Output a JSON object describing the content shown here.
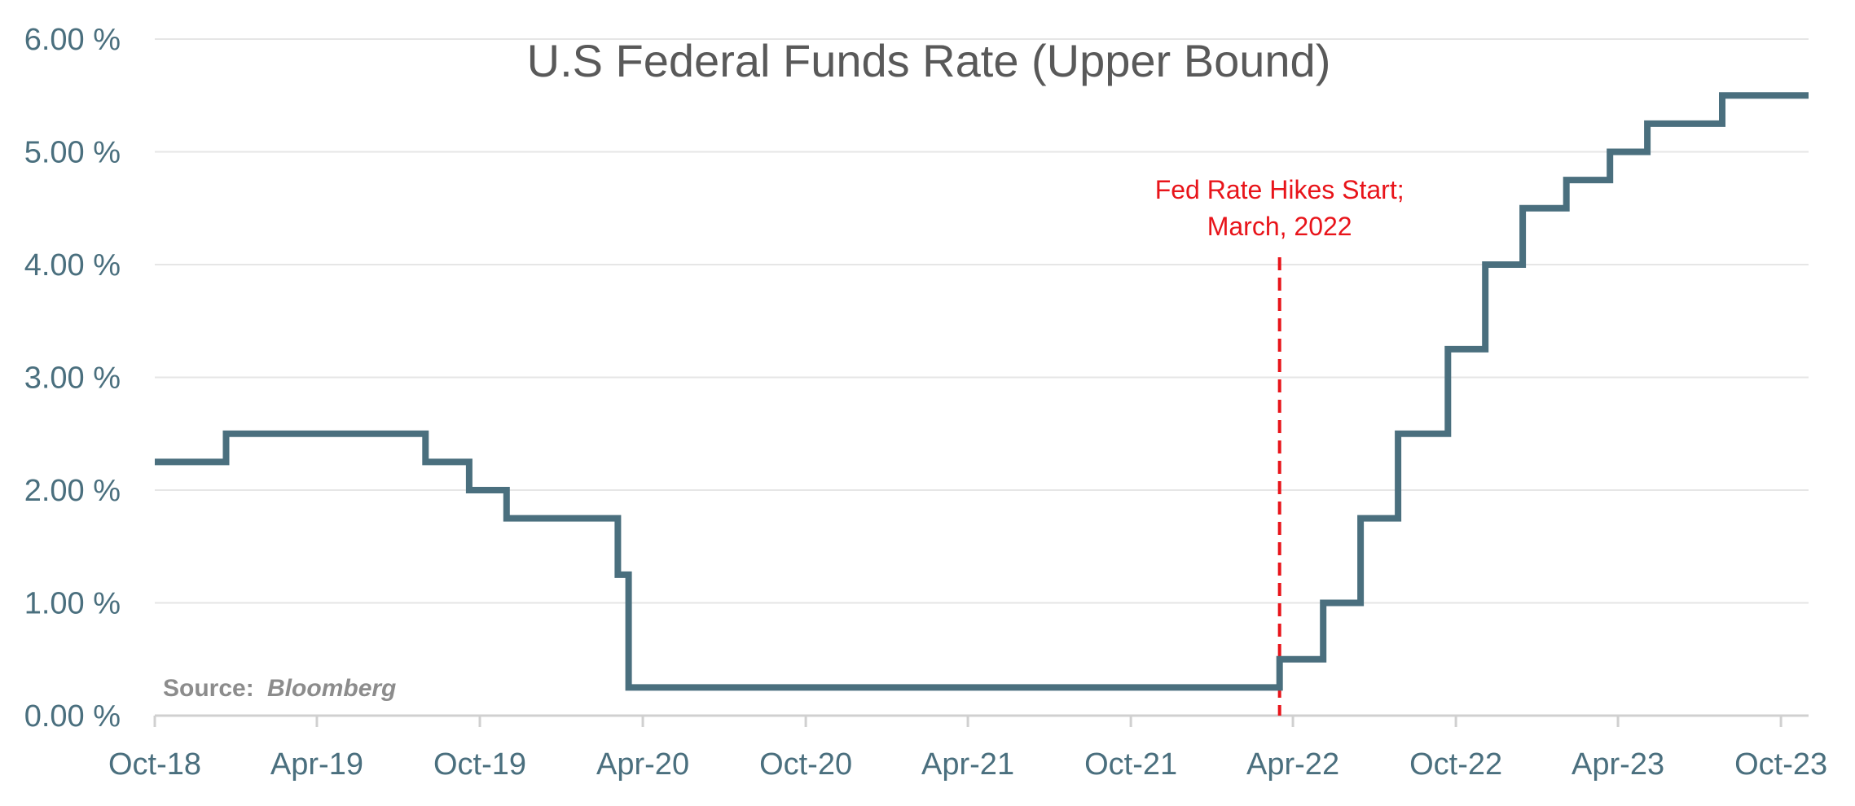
{
  "chart_data": {
    "type": "line",
    "title": "U.S Federal Funds Rate (Upper Bound)",
    "xlabel": "",
    "ylabel": "",
    "x_tick_labels": [
      "Oct-18",
      "Apr-19",
      "Oct-19",
      "Apr-20",
      "Oct-20",
      "Apr-21",
      "Oct-21",
      "Apr-22",
      "Oct-22",
      "Apr-23",
      "Oct-23"
    ],
    "y_tick_labels": [
      "0.00 %",
      "1.00 %",
      "2.00 %",
      "3.00 %",
      "4.00 %",
      "5.00 %",
      "6.00 %"
    ],
    "y_ticks": [
      0,
      1,
      2,
      3,
      4,
      5,
      6
    ],
    "xlim": [
      "2018-10-01",
      "2023-11-01"
    ],
    "ylim": [
      0,
      6
    ],
    "grid": "horizontal",
    "line_style": "step",
    "series": [
      {
        "points": [
          {
            "date": "2018-10-01",
            "value": 2.25
          },
          {
            "date": "2018-12-20",
            "value": 2.5
          },
          {
            "date": "2019-08-01",
            "value": 2.25
          },
          {
            "date": "2019-09-19",
            "value": 2.0
          },
          {
            "date": "2019-10-31",
            "value": 1.75
          },
          {
            "date": "2020-03-04",
            "value": 1.25
          },
          {
            "date": "2020-03-16",
            "value": 0.25
          },
          {
            "date": "2022-03-17",
            "value": 0.5
          },
          {
            "date": "2022-05-05",
            "value": 1.0
          },
          {
            "date": "2022-06-16",
            "value": 1.75
          },
          {
            "date": "2022-07-28",
            "value": 2.5
          },
          {
            "date": "2022-09-22",
            "value": 3.25
          },
          {
            "date": "2022-11-03",
            "value": 4.0
          },
          {
            "date": "2022-12-15",
            "value": 4.5
          },
          {
            "date": "2023-02-02",
            "value": 4.75
          },
          {
            "date": "2023-03-23",
            "value": 5.0
          },
          {
            "date": "2023-05-04",
            "value": 5.25
          },
          {
            "date": "2023-07-27",
            "value": 5.5
          },
          {
            "date": "2023-11-01",
            "value": 5.5
          }
        ]
      }
    ],
    "annotations": [
      {
        "text_line1": "Fed Rate Hikes Start;",
        "text_line2": "March, 2022",
        "x": "2022-03-17",
        "style": "dashed-vertical-line"
      }
    ],
    "source": {
      "label": "Source:",
      "name": "Bloomberg"
    },
    "colors": {
      "line": "#4a6f7e",
      "annotation": "#e8141a",
      "grid": "#e6e6e6",
      "axis": "#d0d0d0",
      "ticks_text": "#4a6f7e",
      "title": "#595959",
      "source": "#8c8c8c"
    }
  }
}
